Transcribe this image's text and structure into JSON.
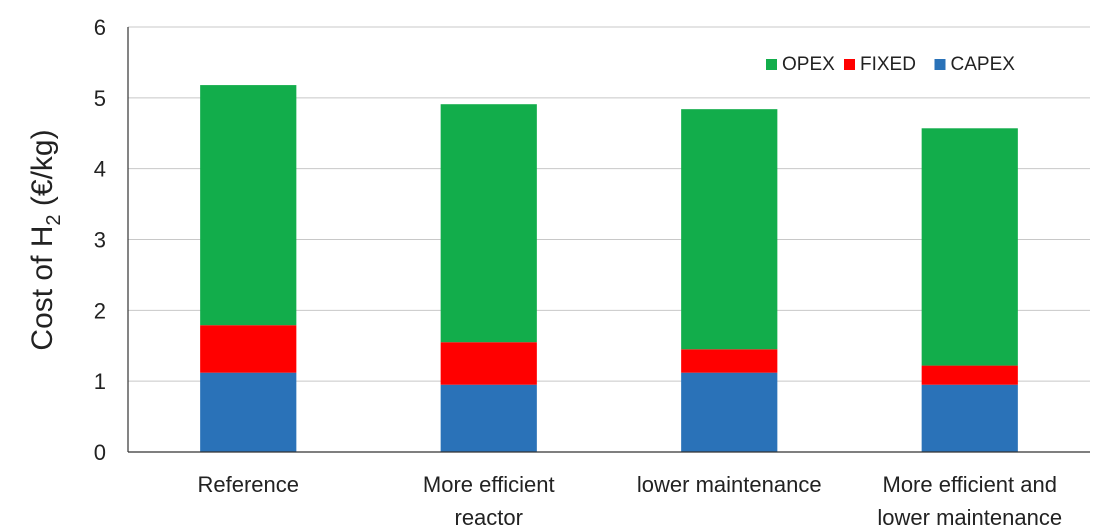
{
  "chart_data": {
    "type": "bar",
    "stacked": true,
    "categories": [
      [
        "Reference"
      ],
      [
        "More efficient",
        "reactor"
      ],
      [
        "lower maintenance"
      ],
      [
        "More efficient and",
        "lower maintenance"
      ]
    ],
    "series": [
      {
        "name": "CAPEX",
        "color": "#2a72b8",
        "values": [
          1.12,
          0.95,
          1.12,
          0.95
        ]
      },
      {
        "name": "FIXED",
        "color": "#ff0000",
        "values": [
          0.67,
          0.6,
          0.33,
          0.27
        ]
      },
      {
        "name": "OPEX",
        "color": "#12ad4b",
        "values": [
          3.39,
          3.36,
          3.39,
          3.35
        ]
      }
    ],
    "legend_order": [
      "OPEX",
      "FIXED",
      "CAPEX"
    ],
    "legend_position": "top-right",
    "ylabel": "Cost of H2 (€/kg)",
    "ylabel_parts": {
      "main": "Cost of H",
      "sub": "2",
      "rest": " (€/kg)"
    },
    "ylim": [
      0,
      6
    ],
    "yticks": [
      "0",
      "1",
      "2",
      "3",
      "4",
      "5",
      "6"
    ],
    "grid": "horizontal"
  }
}
